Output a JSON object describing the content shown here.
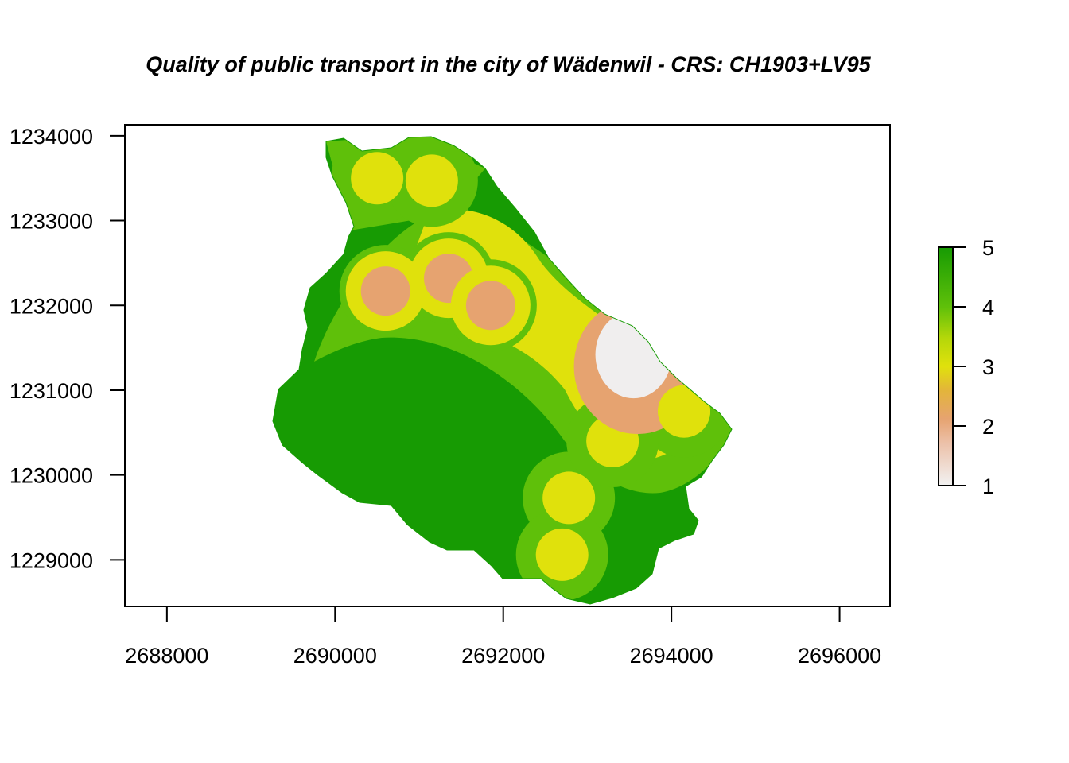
{
  "chart_data": {
    "type": "heatmap",
    "title": "Quality of public transport in the city of Wädenwil - CRS: CH1903+LV95",
    "xlabel": "",
    "ylabel": "",
    "x_ticks": [
      "2688000",
      "2690000",
      "2692000",
      "2694000",
      "2696000"
    ],
    "y_ticks": [
      "1229000",
      "1230000",
      "1231000",
      "1232000",
      "1233000",
      "1234000"
    ],
    "xlim": [
      2687500,
      2696600
    ],
    "ylim": [
      1228450,
      1234130
    ],
    "legend": {
      "position": "right",
      "ticks": [
        "1",
        "2",
        "3",
        "4",
        "5"
      ],
      "range": [
        1,
        5
      ]
    },
    "colors": {
      "level_1": "#f0eeee",
      "level_2": "#e6a370",
      "level_3": "#e0e10c",
      "level_4": "#5fc00a",
      "level_5": "#179b03"
    },
    "stops": [
      {
        "x": 2690600,
        "y": 1232170,
        "level": 2
      },
      {
        "x": 2691350,
        "y": 1232320,
        "level": 2
      },
      {
        "x": 2691850,
        "y": 1232000,
        "level": 2
      },
      {
        "x": 2690500,
        "y": 1233500,
        "level": 3
      },
      {
        "x": 2691150,
        "y": 1233470,
        "level": 3
      },
      {
        "x": 2692780,
        "y": 1229730,
        "level": 3
      },
      {
        "x": 2692700,
        "y": 1229060,
        "level": 3
      },
      {
        "x": 2694150,
        "y": 1230750,
        "level": 3
      },
      {
        "x": 2693300,
        "y": 1230400,
        "level": 3
      }
    ],
    "core_zone": {
      "x": 2693550,
      "y": 1231420,
      "level": 1
    }
  }
}
